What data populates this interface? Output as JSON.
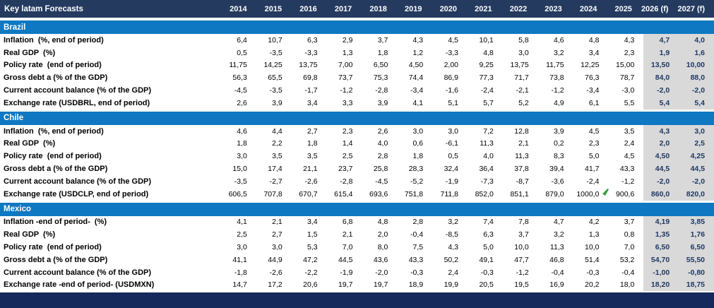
{
  "chart_data": {
    "type": "table",
    "title": "Key latam Forecasts",
    "columns": [
      "2014",
      "2015",
      "2016",
      "2017",
      "2018",
      "2019",
      "2020",
      "2021",
      "2022",
      "2023",
      "2024",
      "2025",
      "2026 (f)",
      "2027 (f)"
    ],
    "forecast_columns": [
      "2026 (f)",
      "2027 (f)"
    ],
    "sections": [
      {
        "name": "Brazil",
        "rows": [
          {
            "label": "Inflation  (%, end of period)",
            "values": [
              "6,4",
              "10,7",
              "6,3",
              "2,9",
              "3,7",
              "4,3",
              "4,5",
              "10,1",
              "5,8",
              "4,6",
              "4,8",
              "4,3",
              "4,7",
              "4,0"
            ]
          },
          {
            "label": "Real GDP  (%)",
            "values": [
              "0,5",
              "-3,5",
              "-3,3",
              "1,3",
              "1,8",
              "1,2",
              "-3,3",
              "4,8",
              "3,0",
              "3,2",
              "3,4",
              "2,3",
              "1,9",
              "1,6"
            ]
          },
          {
            "label": "Policy rate  (end of period)",
            "values": [
              "11,75",
              "14,25",
              "13,75",
              "7,00",
              "6,50",
              "4,50",
              "2,00",
              "9,25",
              "13,75",
              "11,75",
              "12,25",
              "15,00",
              "13,50",
              "10,00"
            ]
          },
          {
            "label": "Gross debt a (% of the GDP)",
            "values": [
              "56,3",
              "65,5",
              "69,8",
              "73,7",
              "75,3",
              "74,4",
              "86,9",
              "77,3",
              "71,7",
              "73,8",
              "76,3",
              "78,7",
              "84,0",
              "88,0"
            ]
          },
          {
            "label": "Current account balance (% of the GDP)",
            "values": [
              "-4,5",
              "-3,5",
              "-1,7",
              "-1,2",
              "-2,8",
              "-3,4",
              "-1,6",
              "-2,4",
              "-2,1",
              "-1,2",
              "-3,4",
              "-3,0",
              "-2,0",
              "-2,0"
            ]
          },
          {
            "label": "Exchange rate (USDBRL, end of period)",
            "values": [
              "2,6",
              "3,9",
              "3,4",
              "3,3",
              "3,9",
              "4,1",
              "5,1",
              "5,7",
              "5,2",
              "4,9",
              "6,1",
              "5,5",
              "5,4",
              "5,4"
            ]
          }
        ]
      },
      {
        "name": "Chile",
        "rows": [
          {
            "label": "Inflation  (%, end of period)",
            "values": [
              "4,6",
              "4,4",
              "2,7",
              "2,3",
              "2,6",
              "3,0",
              "3,0",
              "7,2",
              "12,8",
              "3,9",
              "4,5",
              "3,5",
              "4,3",
              "3,0"
            ]
          },
          {
            "label": "Real GDP  (%)",
            "values": [
              "1,8",
              "2,2",
              "1,8",
              "1,4",
              "4,0",
              "0,6",
              "-6,1",
              "11,3",
              "2,1",
              "0,2",
              "2,3",
              "2,4",
              "2,0",
              "2,5"
            ]
          },
          {
            "label": "Policy rate  (end of period)",
            "values": [
              "3,0",
              "3,5",
              "3,5",
              "2,5",
              "2,8",
              "1,8",
              "0,5",
              "4,0",
              "11,3",
              "8,3",
              "5,0",
              "4,5",
              "4,50",
              "4,25"
            ]
          },
          {
            "label": "Gross debt a (% of the GDP)",
            "values": [
              "15,0",
              "17,4",
              "21,1",
              "23,7",
              "25,8",
              "28,3",
              "32,4",
              "36,4",
              "37,8",
              "39,4",
              "41,7",
              "43,3",
              "44,5",
              "44,5"
            ]
          },
          {
            "label": "Current account balance (% of the GDP)",
            "values": [
              "-3,5",
              "-2,7",
              "-2,6",
              "-2,8",
              "-4,5",
              "-5,2",
              "-1,9",
              "-7,3",
              "-8,7",
              "-3,6",
              "-2,4",
              "-1,2",
              "-2,0",
              "-2,0"
            ]
          },
          {
            "label": "Exchange rate (USDCLP, end of period)",
            "values": [
              "606,5",
              "707,8",
              "670,7",
              "615,4",
              "693,6",
              "751,8",
              "711,8",
              "852,0",
              "851,1",
              "879,0",
              "1000,0",
              "900,6",
              "860,0",
              "820,0"
            ]
          }
        ]
      },
      {
        "name": "Mexico",
        "rows": [
          {
            "label": "Inflation -end of period-  (%)",
            "values": [
              "4,1",
              "2,1",
              "3,4",
              "6,8",
              "4,8",
              "2,8",
              "3,2",
              "7,4",
              "7,8",
              "4,7",
              "4,2",
              "3,7",
              "4,19",
              "3,85"
            ]
          },
          {
            "label": "Real GDP  (%)",
            "values": [
              "2,5",
              "2,7",
              "1,5",
              "2,1",
              "2,0",
              "-0,4",
              "-8,5",
              "6,3",
              "3,7",
              "3,2",
              "1,3",
              "0,8",
              "1,35",
              "1,76"
            ]
          },
          {
            "label": "Policy rate  (end of period)",
            "values": [
              "3,0",
              "3,0",
              "5,3",
              "7,0",
              "8,0",
              "7,5",
              "4,3",
              "5,0",
              "10,0",
              "11,3",
              "10,0",
              "7,0",
              "6,50",
              "6,50"
            ]
          },
          {
            "label": "Gross debt a (% of the GDP)",
            "values": [
              "41,1",
              "44,9",
              "47,2",
              "44,5",
              "43,6",
              "43,3",
              "50,2",
              "49,1",
              "47,7",
              "46,8",
              "51,4",
              "53,2",
              "54,70",
              "55,50"
            ]
          },
          {
            "label": "Current account balance (% of the GDP)",
            "values": [
              "-1,8",
              "-2,6",
              "-2,2",
              "-1,9",
              "-2,0",
              "-0,3",
              "2,4",
              "-0,3",
              "-1,2",
              "-0,4",
              "-0,3",
              "-0,4",
              "-1,00",
              "-0,80"
            ]
          },
          {
            "label": "Exchange rate -end of period- (USDMXN)",
            "values": [
              "14,7",
              "17,2",
              "20,6",
              "19,7",
              "19,7",
              "18,9",
              "19,9",
              "20,5",
              "19,5",
              "16,9",
              "20,2",
              "18,0",
              "18,20",
              "18,75"
            ]
          }
        ]
      }
    ]
  },
  "colors": {
    "header_bar_bg": "#243A5F",
    "section_bar_bg": "#0E78C2",
    "forecast_cell_bg": "#D9D9D9",
    "forecast_text": "#1F3864",
    "footer_bar_bg": "#16295C",
    "green_flag": "#35A03A",
    "body_text": "#000000",
    "header_text": "#FFFFFF"
  },
  "icons": {
    "green_flag": "green-flag-icon"
  }
}
